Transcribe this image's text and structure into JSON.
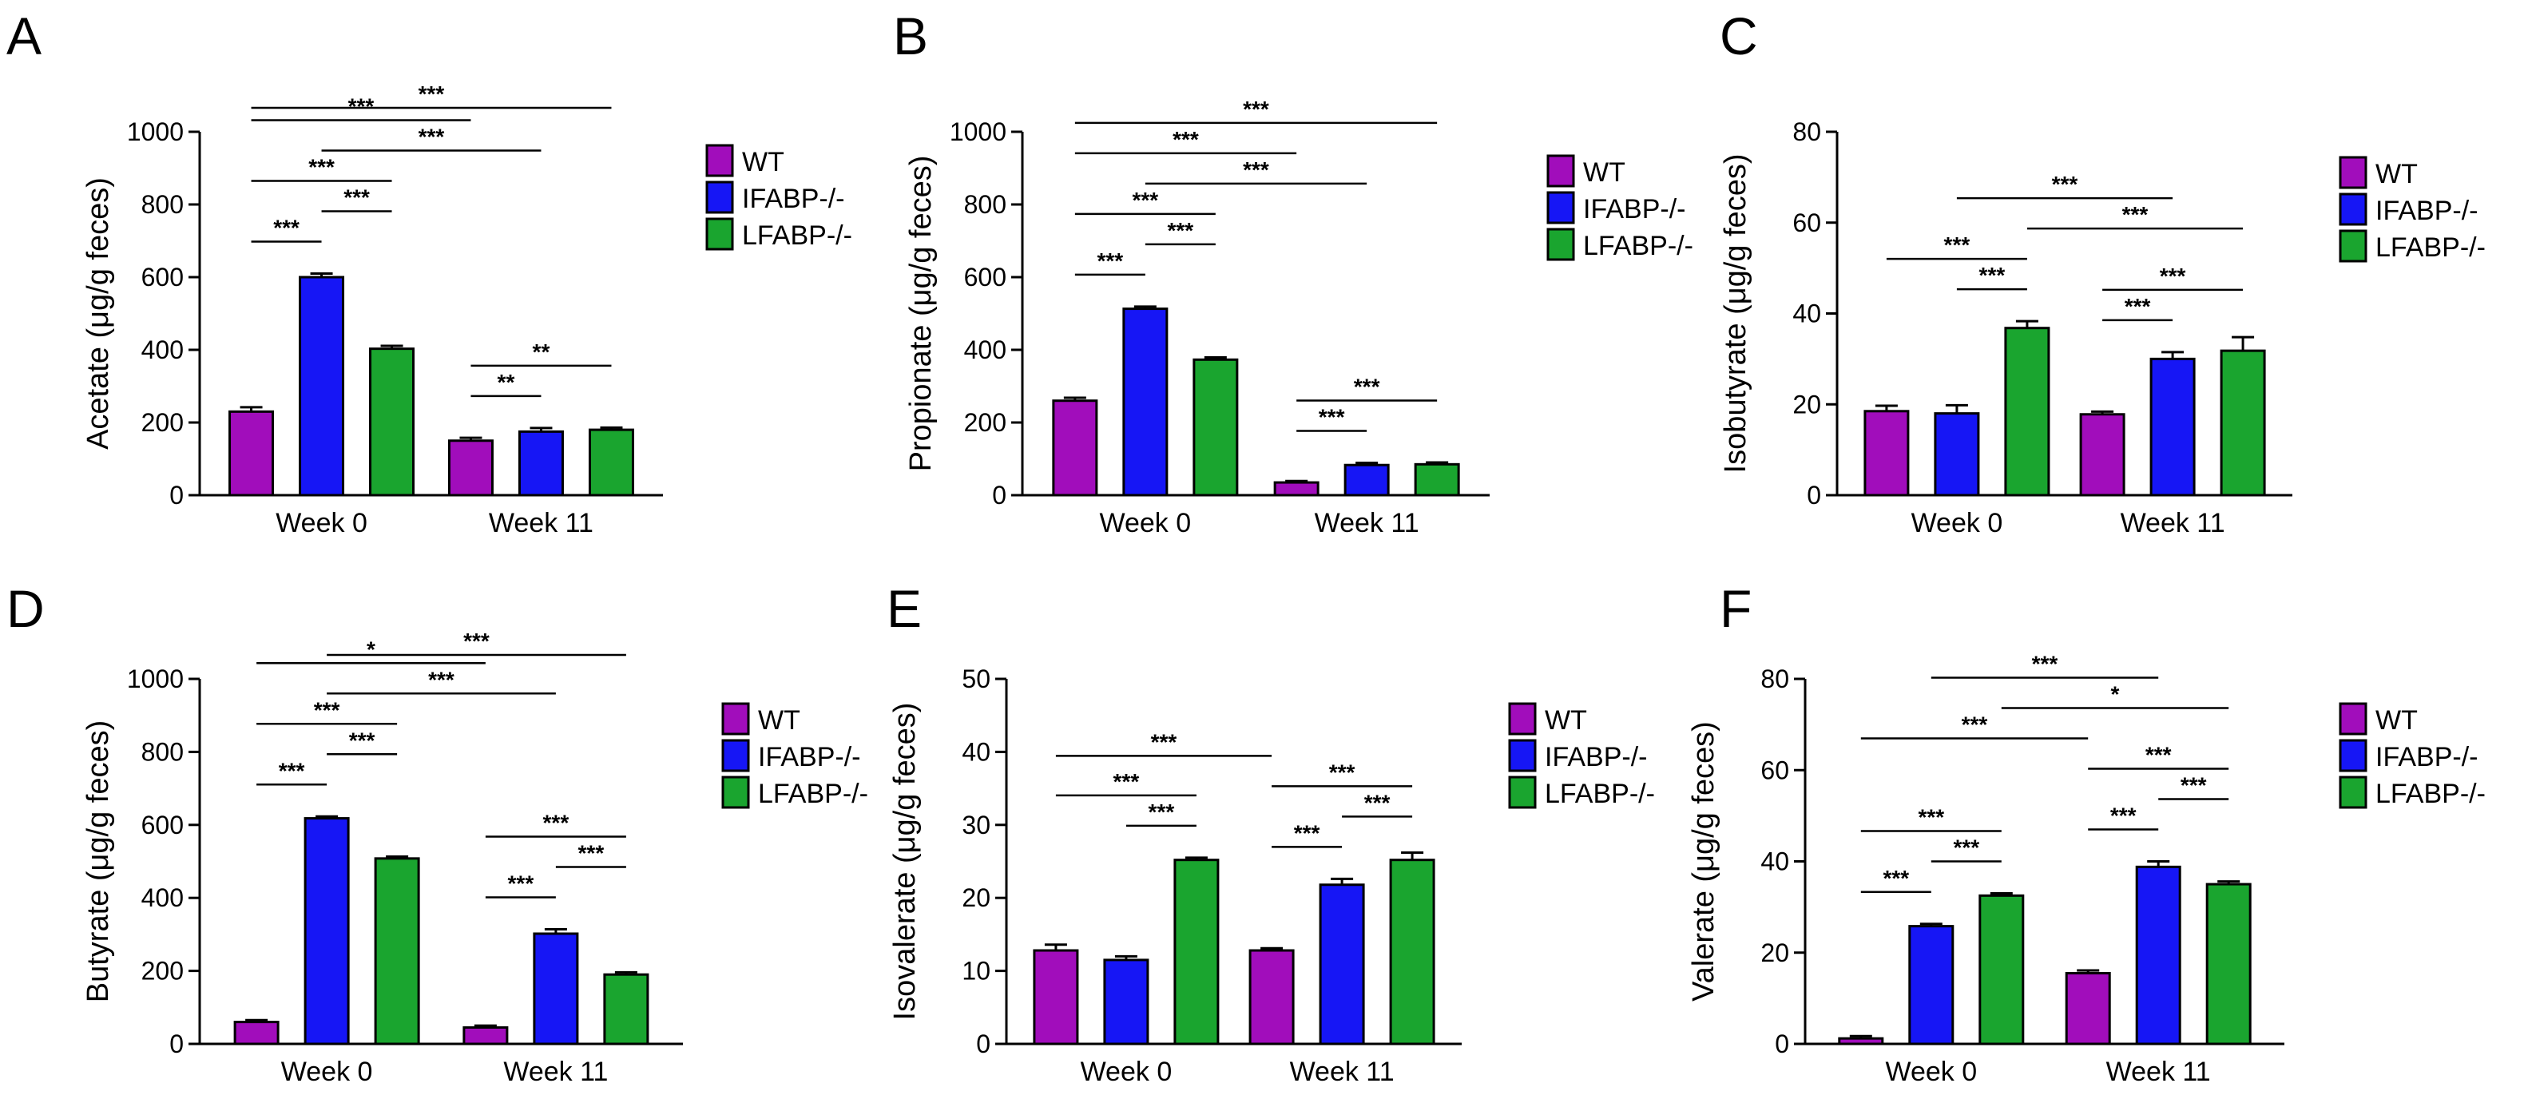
{
  "colors": {
    "WT": "#a10dbb",
    "IFABP-/-": "#1616f5",
    "LFABP-/-": "#1aa52f",
    "axis": "#000000"
  },
  "chart_data": [
    {
      "letter": "A",
      "type": "bar",
      "ylabel": "Acetate (μg/g feces)",
      "ylim": [
        0,
        1000
      ],
      "yticks": [
        "0",
        "200",
        "400",
        "600",
        "800",
        "1000"
      ],
      "categories": [
        "Week 0",
        "Week 11"
      ],
      "legend": [
        "WT",
        "IFABP-/-",
        "LFABP-/-"
      ],
      "series": [
        {
          "name": "WT",
          "values": [
            230,
            150
          ],
          "errors": [
            12,
            8
          ]
        },
        {
          "name": "IFABP-/-",
          "values": [
            600,
            175
          ],
          "errors": [
            10,
            10
          ]
        },
        {
          "name": "LFABP-/-",
          "values": [
            403,
            180
          ],
          "errors": [
            8,
            6
          ]
        }
      ],
      "significance": [
        {
          "from": [
            0,
            0
          ],
          "to": [
            1,
            2
          ],
          "label": "***"
        },
        {
          "from": [
            0,
            1
          ],
          "to": [
            1,
            1
          ],
          "label": "***"
        },
        {
          "from": [
            0,
            0
          ],
          "to": [
            1,
            0
          ],
          "label": "***"
        },
        {
          "from": [
            0,
            0
          ],
          "to": [
            0,
            1
          ],
          "label": "***"
        },
        {
          "from": [
            0,
            0
          ],
          "to": [
            0,
            2
          ],
          "label": "***"
        },
        {
          "from": [
            0,
            1
          ],
          "to": [
            0,
            2
          ],
          "label": "***"
        },
        {
          "from": [
            1,
            0
          ],
          "to": [
            1,
            2
          ],
          "label": "**"
        },
        {
          "from": [
            1,
            0
          ],
          "to": [
            1,
            1
          ],
          "label": "**"
        }
      ]
    },
    {
      "letter": "B",
      "type": "bar",
      "ylabel": "Propionate (μg/g feces)",
      "ylim": [
        0,
        1000
      ],
      "yticks": [
        "0",
        "200",
        "400",
        "600",
        "800",
        "1000"
      ],
      "categories": [
        "Week 0",
        "Week 11"
      ],
      "legend": [
        "WT",
        "IFABP-/-",
        "LFABP-/-"
      ],
      "series": [
        {
          "name": "WT",
          "values": [
            260,
            35
          ],
          "errors": [
            8,
            4
          ]
        },
        {
          "name": "IFABP-/-",
          "values": [
            513,
            83
          ],
          "errors": [
            6,
            6
          ]
        },
        {
          "name": "LFABP-/-",
          "values": [
            373,
            85
          ],
          "errors": [
            6,
            5
          ]
        }
      ],
      "significance": [
        {
          "from": [
            0,
            0
          ],
          "to": [
            1,
            2
          ],
          "label": "***"
        },
        {
          "from": [
            0,
            1
          ],
          "to": [
            1,
            1
          ],
          "label": "***"
        },
        {
          "from": [
            0,
            0
          ],
          "to": [
            1,
            0
          ],
          "label": "***"
        },
        {
          "from": [
            0,
            0
          ],
          "to": [
            0,
            1
          ],
          "label": "***"
        },
        {
          "from": [
            0,
            0
          ],
          "to": [
            0,
            2
          ],
          "label": "***"
        },
        {
          "from": [
            0,
            1
          ],
          "to": [
            0,
            2
          ],
          "label": "***"
        },
        {
          "from": [
            1,
            0
          ],
          "to": [
            1,
            2
          ],
          "label": "***"
        },
        {
          "from": [
            1,
            0
          ],
          "to": [
            1,
            1
          ],
          "label": "***"
        }
      ]
    },
    {
      "letter": "C",
      "type": "bar",
      "ylabel": "Isobutyrate (μg/g feces)",
      "ylim": [
        0,
        80
      ],
      "yticks": [
        "0",
        "20",
        "40",
        "60",
        "80"
      ],
      "categories": [
        "Week 0",
        "Week 11"
      ],
      "legend": [
        "WT",
        "IFABP-/-",
        "LFABP-/-"
      ],
      "series": [
        {
          "name": "WT",
          "values": [
            18.5,
            17.8
          ],
          "errors": [
            1.2,
            0.6
          ]
        },
        {
          "name": "IFABP-/-",
          "values": [
            18,
            30
          ],
          "errors": [
            1.8,
            1.5
          ]
        },
        {
          "name": "LFABP-/-",
          "values": [
            36.8,
            31.8
          ],
          "errors": [
            1.5,
            3
          ]
        }
      ],
      "significance": [
        {
          "from": [
            0,
            2
          ],
          "to": [
            1,
            2
          ],
          "label": "***"
        },
        {
          "from": [
            0,
            1
          ],
          "to": [
            1,
            1
          ],
          "label": "***"
        },
        {
          "from": [
            0,
            0
          ],
          "to": [
            0,
            2
          ],
          "label": "***"
        },
        {
          "from": [
            0,
            1
          ],
          "to": [
            0,
            2
          ],
          "label": "***"
        },
        {
          "from": [
            1,
            0
          ],
          "to": [
            1,
            2
          ],
          "label": "***"
        },
        {
          "from": [
            1,
            0
          ],
          "to": [
            1,
            1
          ],
          "label": "***"
        }
      ]
    },
    {
      "letter": "D",
      "type": "bar",
      "ylabel": "Butyrate (μg/g feces)",
      "ylim": [
        0,
        1000
      ],
      "yticks": [
        "0",
        "200",
        "400",
        "600",
        "800",
        "1000"
      ],
      "categories": [
        "Week 0",
        "Week 11"
      ],
      "legend": [
        "WT",
        "IFABP-/-",
        "LFABP-/-"
      ],
      "series": [
        {
          "name": "WT",
          "values": [
            60,
            45
          ],
          "errors": [
            5,
            5
          ]
        },
        {
          "name": "IFABP-/-",
          "values": [
            618,
            302
          ],
          "errors": [
            5,
            12
          ]
        },
        {
          "name": "LFABP-/-",
          "values": [
            508,
            190
          ],
          "errors": [
            5,
            6
          ]
        }
      ],
      "significance": [
        {
          "from": [
            0,
            1
          ],
          "to": [
            1,
            2
          ],
          "label": "***"
        },
        {
          "from": [
            0,
            1
          ],
          "to": [
            1,
            1
          ],
          "label": "***"
        },
        {
          "from": [
            0,
            0
          ],
          "to": [
            1,
            0
          ],
          "label": "*"
        },
        {
          "from": [
            0,
            0
          ],
          "to": [
            0,
            1
          ],
          "label": "***"
        },
        {
          "from": [
            0,
            0
          ],
          "to": [
            0,
            2
          ],
          "label": "***"
        },
        {
          "from": [
            0,
            1
          ],
          "to": [
            0,
            2
          ],
          "label": "***"
        },
        {
          "from": [
            1,
            0
          ],
          "to": [
            1,
            2
          ],
          "label": "***"
        },
        {
          "from": [
            1,
            0
          ],
          "to": [
            1,
            1
          ],
          "label": "***"
        },
        {
          "from": [
            1,
            1
          ],
          "to": [
            1,
            2
          ],
          "label": "***"
        }
      ]
    },
    {
      "letter": "E",
      "type": "bar",
      "ylabel": "Isovalerate (μg/g feces)",
      "ylim": [
        0,
        50
      ],
      "yticks": [
        "0",
        "10",
        "20",
        "30",
        "40",
        "50"
      ],
      "categories": [
        "Week 0",
        "Week 11"
      ],
      "legend": [
        "WT",
        "IFABP-/-",
        "LFABP-/-"
      ],
      "series": [
        {
          "name": "WT",
          "values": [
            12.8,
            12.8
          ],
          "errors": [
            0.8,
            0.3
          ]
        },
        {
          "name": "IFABP-/-",
          "values": [
            11.5,
            21.8
          ],
          "errors": [
            0.5,
            0.8
          ]
        },
        {
          "name": "LFABP-/-",
          "values": [
            25.2,
            25.2
          ],
          "errors": [
            0.3,
            1
          ]
        }
      ],
      "significance": [
        {
          "from": [
            0,
            0
          ],
          "to": [
            1,
            0
          ],
          "label": "***"
        },
        {
          "from": [
            0,
            0
          ],
          "to": [
            0,
            2
          ],
          "label": "***"
        },
        {
          "from": [
            0,
            1
          ],
          "to": [
            0,
            2
          ],
          "label": "***"
        },
        {
          "from": [
            1,
            0
          ],
          "to": [
            1,
            2
          ],
          "label": "***"
        },
        {
          "from": [
            1,
            1
          ],
          "to": [
            1,
            2
          ],
          "label": "***"
        },
        {
          "from": [
            1,
            0
          ],
          "to": [
            1,
            1
          ],
          "label": "***"
        }
      ]
    },
    {
      "letter": "F",
      "type": "bar",
      "ylabel": "Valerate (μg/g feces)",
      "ylim": [
        0,
        80
      ],
      "yticks": [
        "0",
        "20",
        "40",
        "60",
        "80"
      ],
      "categories": [
        "Week 0",
        "Week 11"
      ],
      "legend": [
        "WT",
        "IFABP-/-",
        "LFABP-/-"
      ],
      "series": [
        {
          "name": "WT",
          "values": [
            1.2,
            15.5
          ],
          "errors": [
            0.5,
            0.6
          ]
        },
        {
          "name": "IFABP-/-",
          "values": [
            25.8,
            38.8
          ],
          "errors": [
            0.5,
            1.2
          ]
        },
        {
          "name": "LFABP-/-",
          "values": [
            32.5,
            35
          ],
          "errors": [
            0.5,
            0.6
          ]
        }
      ],
      "significance": [
        {
          "from": [
            0,
            2
          ],
          "to": [
            1,
            2
          ],
          "label": "*"
        },
        {
          "from": [
            0,
            1
          ],
          "to": [
            1,
            1
          ],
          "label": "***"
        },
        {
          "from": [
            0,
            0
          ],
          "to": [
            1,
            0
          ],
          "label": "***"
        },
        {
          "from": [
            0,
            0
          ],
          "to": [
            0,
            1
          ],
          "label": "***"
        },
        {
          "from": [
            0,
            0
          ],
          "to": [
            0,
            2
          ],
          "label": "***"
        },
        {
          "from": [
            0,
            1
          ],
          "to": [
            0,
            2
          ],
          "label": "***"
        },
        {
          "from": [
            1,
            0
          ],
          "to": [
            1,
            2
          ],
          "label": "***"
        },
        {
          "from": [
            1,
            0
          ],
          "to": [
            1,
            1
          ],
          "label": "***"
        },
        {
          "from": [
            1,
            1
          ],
          "to": [
            1,
            2
          ],
          "label": "***"
        }
      ]
    }
  ]
}
